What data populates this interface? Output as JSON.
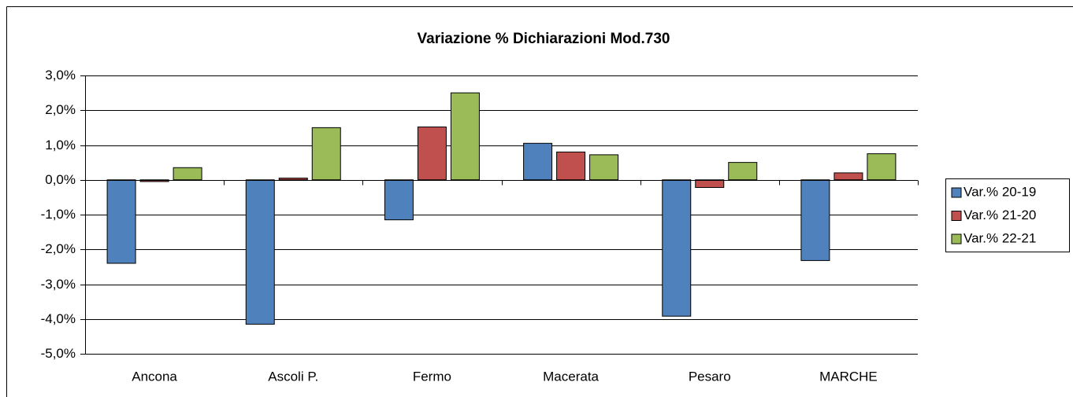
{
  "chart_data": {
    "type": "bar",
    "title": "Variazione % Dichiarazioni Mod.730",
    "categories": [
      "Ancona",
      "Ascoli P.",
      "Fermo",
      "Macerata",
      "Pesaro",
      "MARCHE"
    ],
    "series": [
      {
        "name": "Var.% 20-19",
        "color": "#4f81bd",
        "values": [
          -2.4,
          -4.15,
          -1.15,
          1.05,
          -3.92,
          -2.32
        ]
      },
      {
        "name": "Var.% 21-20",
        "color": "#c0504d",
        "values": [
          -0.05,
          0.05,
          1.52,
          0.8,
          -0.22,
          0.2
        ]
      },
      {
        "name": "Var.% 22-21",
        "color": "#9bbb59",
        "values": [
          0.35,
          1.5,
          2.5,
          0.72,
          0.5,
          0.75
        ]
      }
    ],
    "ylim": [
      -5,
      3
    ],
    "yticks": [
      {
        "value": -5,
        "label": "-5,0%"
      },
      {
        "value": -4,
        "label": "-4,0%"
      },
      {
        "value": -3,
        "label": "-3,0%"
      },
      {
        "value": -2,
        "label": "-2,0%"
      },
      {
        "value": -1,
        "label": "-1,0%"
      },
      {
        "value": 0,
        "label": "0,0%"
      },
      {
        "value": 1,
        "label": "1,0%"
      },
      {
        "value": 2,
        "label": "2,0%"
      },
      {
        "value": 3,
        "label": "3,0%"
      }
    ],
    "grid": true,
    "legend": "right"
  }
}
